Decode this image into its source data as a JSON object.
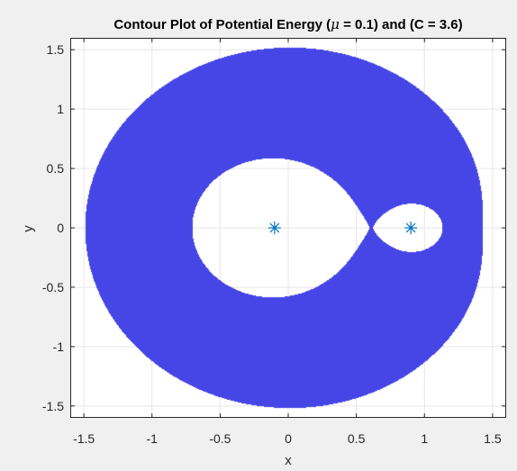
{
  "chart_data": {
    "type": "contour",
    "title": "Contour Plot of Potential Energy (μ = 0.1) and (C = 3.6)",
    "title_parts": {
      "before": "Contour Plot of Potential Energy (",
      "symbol": "μ",
      "after": " = 0.1) and (C = 3.6)"
    },
    "xlabel": "x",
    "ylabel": "y",
    "xlim": [
      -1.6,
      1.6
    ],
    "ylim": [
      -1.6,
      1.6
    ],
    "xticks": [
      -1.5,
      -1,
      -0.5,
      0,
      0.5,
      1,
      1.5
    ],
    "yticks": [
      -1.5,
      -1,
      -0.5,
      0,
      0.5,
      1,
      1.5
    ],
    "xtick_labels": [
      "-1.5",
      "-1",
      "-0.5",
      "0",
      "0.5",
      "1",
      "1.5"
    ],
    "ytick_labels": [
      "-1.5",
      "-1",
      "-0.5",
      "0",
      "0.5",
      "1",
      "1.5"
    ],
    "grid": true,
    "parameters": {
      "mu": 0.1,
      "C": 3.6
    },
    "filled_region": "2*Omega(x,y) < 3.6 (forbidden region, filled)",
    "colors": {
      "fill": "#4646e6",
      "background": "#ffffff",
      "figure_background": "#f0f0f0",
      "grid": "#e6e6e6",
      "axis": "#262626",
      "marker": "#0072bd"
    },
    "markers": [
      {
        "name": "primary-1",
        "x": -0.1,
        "y": 0
      },
      {
        "name": "primary-2",
        "x": 0.9,
        "y": 0
      }
    ],
    "marker_symbol": "*"
  }
}
